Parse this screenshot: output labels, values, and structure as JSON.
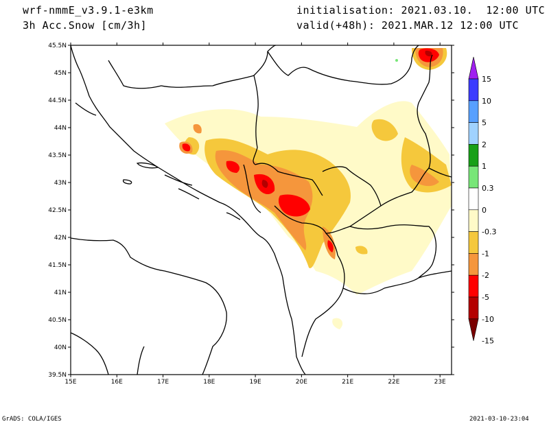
{
  "header": {
    "model": "wrf-nmmE_v3.9.1-e3km",
    "variable": "3h Acc.Snow [cm/3h]",
    "init": "initialisation: 2021.03.10.  12:00 UTC",
    "valid": "valid(+48h): 2021.MAR.12 12:00 UTC"
  },
  "footer": {
    "left": "GrADS: COLA/IGES",
    "right": "2021-03-10-23:04"
  },
  "map": {
    "lon_labels": [
      "15E",
      "16E",
      "17E",
      "18E",
      "19E",
      "20E",
      "21E",
      "22E",
      "23E"
    ],
    "lat_labels": [
      "39.5N",
      "40N",
      "40.5N",
      "41N",
      "41.5N",
      "42N",
      "42.5N",
      "43N",
      "43.5N",
      "44N",
      "44.5N",
      "45N",
      "45.5N"
    ]
  },
  "legend": {
    "labels": [
      "15",
      "10",
      "5",
      "2",
      "1",
      "0.3",
      "0",
      "-0.3",
      "-1",
      "-2",
      "-5",
      "-10",
      "-15"
    ],
    "colors": [
      "#a020f0",
      "#3c3cff",
      "#58a0ff",
      "#a0d2ff",
      "#18a018",
      "#78e678",
      "#ffffff",
      "#fffac8",
      "#f5c83c",
      "#f5963c",
      "#ff0000",
      "#b40000",
      "#7a0000"
    ]
  }
}
